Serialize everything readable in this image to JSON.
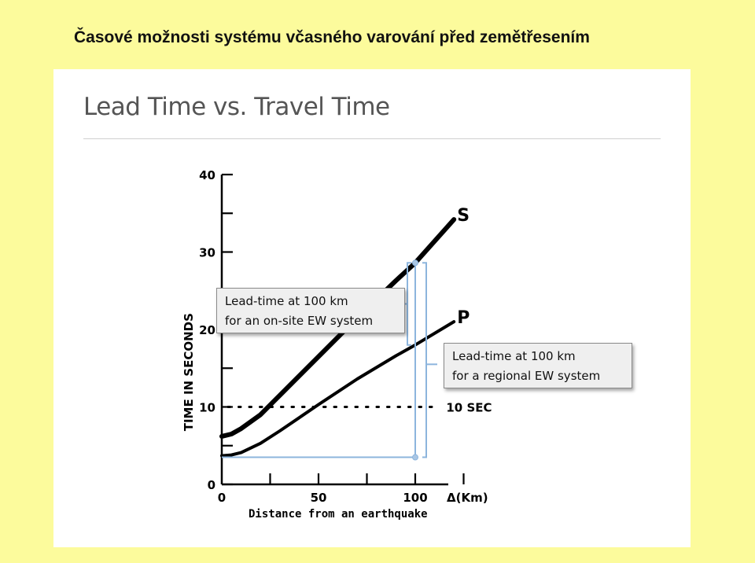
{
  "page": {
    "heading": "Časové možnosti systému včasného varování před zemětřesením"
  },
  "slide": {
    "title": "Lead Time vs. Travel Time"
  },
  "callouts": {
    "onsite": {
      "line1": "Lead-time at 100 km",
      "line2": "for an on-site EW system"
    },
    "regional": {
      "line1": "Lead-time at 100 km",
      "line2": "for a regional EW system"
    }
  },
  "colors": {
    "background": "#fcfb9c",
    "curve": "#000000",
    "bracket": "#8db5dd"
  },
  "chart_data": {
    "type": "line",
    "xlabel": "Distance from an earthquake",
    "ylabel": "TIME IN SECONDS",
    "xlim": [
      0,
      125
    ],
    "ylim": [
      0,
      40
    ],
    "x_ticks": [
      0,
      50,
      100
    ],
    "x_tick_labels": [
      "0",
      "50",
      "100"
    ],
    "x_axis_end_label": "Δ(Km)",
    "y_ticks": [
      0,
      10,
      20,
      30,
      40
    ],
    "y_tick_labels": [
      "0",
      "10",
      "20",
      "30",
      "40"
    ],
    "reference_line": {
      "y": 10,
      "label": "10 SEC"
    },
    "series": [
      {
        "name": "S",
        "x": [
          0,
          5,
          10,
          20,
          30,
          50,
          70,
          90,
          100,
          120
        ],
        "y": [
          6.2,
          6.5,
          7.2,
          9.0,
          11.5,
          16.5,
          21.5,
          26.3,
          28.6,
          34.2
        ]
      },
      {
        "name": "P",
        "x": [
          0,
          5,
          10,
          20,
          30,
          50,
          70,
          90,
          100,
          120
        ],
        "y": [
          3.7,
          3.8,
          4.1,
          5.3,
          6.9,
          10.3,
          13.6,
          16.6,
          18.0,
          21.0
        ]
      }
    ],
    "annotations": [
      {
        "label": "Lead-time at 100 km for an on-site EW system",
        "x": 100,
        "y_from": 18.0,
        "y_to": 28.6
      },
      {
        "label": "Lead-time at 100 km for a regional EW system",
        "x": 100,
        "y_from": 3.5,
        "y_to": 18.0
      }
    ]
  }
}
